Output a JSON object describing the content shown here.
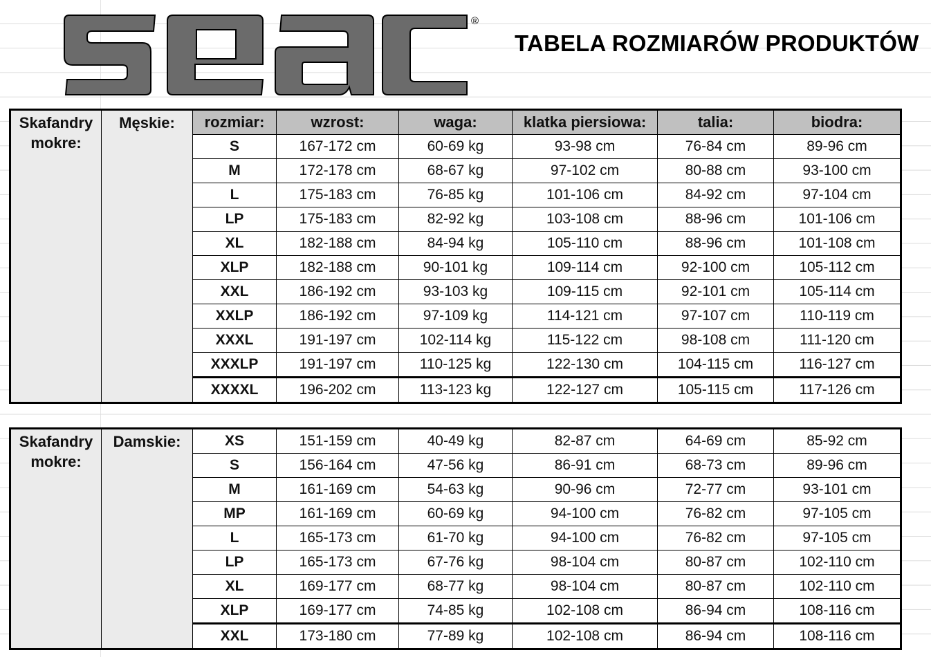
{
  "logo": {
    "text": "seac",
    "registered": "®",
    "color": "#6b6b6b"
  },
  "title": "TABELA ROZMIARÓW PRODUKTÓW",
  "colors": {
    "header_bg": "#c0c0c0",
    "group_bg": "#ebebeb"
  },
  "headers": [
    "rozmiar:",
    "wzrost:",
    "waga:",
    "klatka piersiowa:",
    "talia:",
    "biodra:"
  ],
  "men": {
    "category": "Skafandry mokre:",
    "group": "Męskie:",
    "rows": [
      [
        "S",
        "167-172 cm",
        "60-69 kg",
        "93-98 cm",
        "76-84 cm",
        "89-96 cm"
      ],
      [
        "M",
        "172-178 cm",
        "68-67 kg",
        "97-102 cm",
        "80-88 cm",
        "93-100 cm"
      ],
      [
        "L",
        "175-183 cm",
        "76-85 kg",
        "101-106 cm",
        "84-92 cm",
        "97-104 cm"
      ],
      [
        "LP",
        "175-183 cm",
        "82-92 kg",
        "103-108 cm",
        "88-96 cm",
        "101-106 cm"
      ],
      [
        "XL",
        "182-188 cm",
        "84-94 kg",
        "105-110 cm",
        "88-96 cm",
        "101-108 cm"
      ],
      [
        "XLP",
        "182-188 cm",
        "90-101 kg",
        "109-114 cm",
        "92-100 cm",
        "105-112 cm"
      ],
      [
        "XXL",
        "186-192 cm",
        "93-103 kg",
        "109-115 cm",
        "92-101 cm",
        "105-114 cm"
      ],
      [
        "XXLP",
        "186-192 cm",
        "97-109 kg",
        "114-121 cm",
        "97-107 cm",
        "110-119 cm"
      ],
      [
        "XXXL",
        "191-197 cm",
        "102-114 kg",
        "115-122 cm",
        "98-108 cm",
        "111-120 cm"
      ],
      [
        "XXXLP",
        "191-197 cm",
        "110-125 kg",
        "122-130 cm",
        "104-115 cm",
        "116-127 cm"
      ],
      [
        "XXXXL",
        "196-202 cm",
        "113-123 kg",
        "122-127 cm",
        "105-115 cm",
        "117-126 cm"
      ]
    ]
  },
  "women": {
    "category": "Skafandry mokre:",
    "group": "Damskie:",
    "rows": [
      [
        "XS",
        "151-159 cm",
        "40-49 kg",
        "82-87 cm",
        "64-69 cm",
        "85-92 cm"
      ],
      [
        "S",
        "156-164 cm",
        "47-56 kg",
        "86-91 cm",
        "68-73 cm",
        "89-96 cm"
      ],
      [
        "M",
        "161-169 cm",
        "54-63 kg",
        "90-96 cm",
        "72-77 cm",
        "93-101 cm"
      ],
      [
        "MP",
        "161-169 cm",
        "60-69 kg",
        "94-100 cm",
        "76-82 cm",
        "97-105 cm"
      ],
      [
        "L",
        "165-173 cm",
        "61-70 kg",
        "94-100 cm",
        "76-82 cm",
        "97-105 cm"
      ],
      [
        "LP",
        "165-173 cm",
        "67-76 kg",
        "98-104 cm",
        "80-87 cm",
        "102-110 cm"
      ],
      [
        "XL",
        "169-177 cm",
        "68-77 kg",
        "98-104 cm",
        "80-87 cm",
        "102-110 cm"
      ],
      [
        "XLP",
        "169-177 cm",
        "74-85 kg",
        "102-108 cm",
        "86-94 cm",
        "108-116 cm"
      ],
      [
        "XXL",
        "173-180 cm",
        "77-89 kg",
        "102-108 cm",
        "86-94 cm",
        "108-116 cm"
      ]
    ]
  }
}
